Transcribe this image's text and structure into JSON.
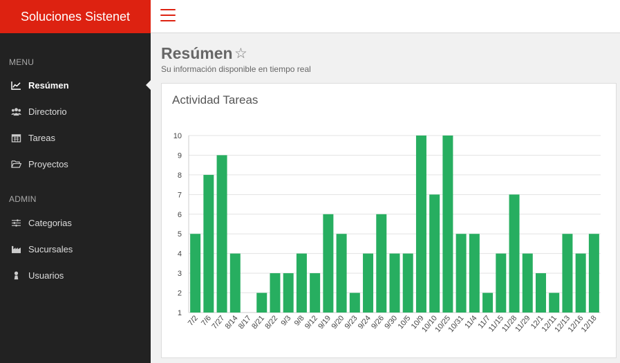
{
  "brand": {
    "name": "Soluciones Sistenet"
  },
  "sidebar": {
    "sections": [
      {
        "title": "MENU"
      },
      {
        "title": "ADMIN"
      }
    ],
    "items": [
      {
        "label": "Resúmen",
        "icon": "line-chart-icon",
        "active": true
      },
      {
        "label": "Directorio",
        "icon": "users-icon"
      },
      {
        "label": "Tareas",
        "icon": "calendar-icon"
      },
      {
        "label": "Proyectos",
        "icon": "folder-open-icon"
      },
      {
        "label": "Categorias",
        "icon": "sliders-icon"
      },
      {
        "label": "Sucursales",
        "icon": "industry-icon"
      },
      {
        "label": "Usuarios",
        "icon": "user-icon"
      }
    ]
  },
  "page": {
    "title": "Resúmen",
    "subtitle": "Su información disponible en tiempo real",
    "star_icon": "star-outline-icon"
  },
  "card": {
    "title": "Actividad Tareas"
  },
  "colors": {
    "accent": "#dd2211",
    "bar": "#27ae60",
    "sidebar": "#222222"
  },
  "chart_data": {
    "type": "bar",
    "categories": [
      "7/2",
      "7/6",
      "7/27",
      "8/14",
      "8/17",
      "8/21",
      "8/22",
      "9/3",
      "9/8",
      "9/12",
      "9/19",
      "9/20",
      "9/23",
      "9/24",
      "9/26",
      "9/30",
      "10/5",
      "10/9",
      "10/10",
      "10/25",
      "10/31",
      "11/4",
      "11/7",
      "11/15",
      "11/28",
      "11/29",
      "12/1",
      "12/11",
      "12/13",
      "12/16",
      "12/18"
    ],
    "values": [
      5,
      8,
      9,
      4,
      1,
      2,
      3,
      3,
      4,
      3,
      6,
      5,
      2,
      4,
      6,
      4,
      4,
      10,
      7,
      10,
      5,
      5,
      2,
      4,
      7,
      4,
      3,
      2,
      5,
      4,
      5
    ],
    "yticks": [
      1,
      2,
      3,
      4,
      5,
      6,
      7,
      8,
      9,
      10
    ],
    "ylim": [
      1,
      10
    ],
    "grid": true
  }
}
